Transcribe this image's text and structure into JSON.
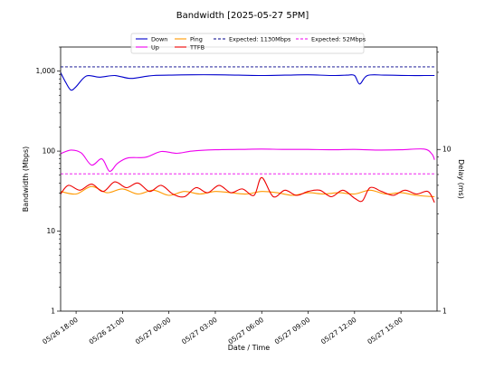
{
  "chart_data": {
    "type": "line",
    "title": "Bandwidth [2025-05-27 5PM]",
    "xlabel": "Date / Time",
    "ylabel": "Bandwidth (Mbps)",
    "y2label": "Delay (ms)",
    "yscale": "log",
    "y2scale": "log",
    "ylim": [
      1,
      2000
    ],
    "y2lim": [
      1,
      43
    ],
    "xlim": [
      "2025-05-26 17:00",
      "2025-05-27 17:20"
    ],
    "x_ticks": [
      "05/26 18:00",
      "05/26 21:00",
      "05/27 00:00",
      "05/27 03:00",
      "05/27 06:00",
      "05/27 09:00",
      "05/27 12:00",
      "05/27 15:00"
    ],
    "y_ticks": [
      "1",
      "10",
      "100",
      "1,000"
    ],
    "y2_ticks": [
      "1",
      "10"
    ],
    "grid": false,
    "legend_position": "top-center",
    "series": [
      {
        "name": "Down",
        "axis": "left",
        "color": "#0000cc",
        "style": "solid",
        "x": [
          "2025-05-26 17:00",
          "2025-05-26 17:20",
          "2025-05-26 17:40",
          "2025-05-26 18:00",
          "2025-05-26 18:40",
          "2025-05-26 19:30",
          "2025-05-26 20:30",
          "2025-05-26 21:30",
          "2025-05-26 22:30",
          "2025-05-26 23:00",
          "2025-05-27 00:00",
          "2025-05-27 01:30",
          "2025-05-27 03:00",
          "2025-05-27 04:30",
          "2025-05-27 06:00",
          "2025-05-27 07:30",
          "2025-05-27 09:00",
          "2025-05-27 10:30",
          "2025-05-27 11:30",
          "2025-05-27 12:00",
          "2025-05-27 12:20",
          "2025-05-27 12:50",
          "2025-05-27 14:00",
          "2025-05-27 15:30",
          "2025-05-27 16:30",
          "2025-05-27 17:10"
        ],
        "values": [
          960,
          720,
          580,
          640,
          870,
          840,
          880,
          810,
          860,
          880,
          890,
          900,
          900,
          890,
          880,
          890,
          900,
          880,
          890,
          880,
          690,
          880,
          890,
          880,
          880,
          880
        ]
      },
      {
        "name": "Up",
        "axis": "left",
        "color": "#ee00ee",
        "style": "solid",
        "x": [
          "2025-05-26 17:00",
          "2025-05-26 17:40",
          "2025-05-26 18:20",
          "2025-05-26 19:00",
          "2025-05-26 19:40",
          "2025-05-26 20:10",
          "2025-05-26 20:40",
          "2025-05-26 21:20",
          "2025-05-26 22:30",
          "2025-05-26 23:30",
          "2025-05-27 00:30",
          "2025-05-27 01:30",
          "2025-05-27 03:00",
          "2025-05-27 04:30",
          "2025-05-27 06:00",
          "2025-05-27 07:30",
          "2025-05-27 09:00",
          "2025-05-27 10:30",
          "2025-05-27 12:00",
          "2025-05-27 13:30",
          "2025-05-27 15:00",
          "2025-05-27 16:30",
          "2025-05-27 17:00",
          "2025-05-27 17:10"
        ],
        "values": [
          93,
          103,
          95,
          67,
          80,
          56,
          70,
          82,
          84,
          99,
          94,
          100,
          104,
          105,
          106,
          105,
          105,
          104,
          105,
          103,
          104,
          106,
          92,
          78
        ]
      },
      {
        "name": "Expected: 1130Mbps",
        "axis": "left",
        "color": "#00008b",
        "style": "dashed",
        "x": [
          "2025-05-26 17:00",
          "2025-05-27 17:10"
        ],
        "values": [
          1130,
          1130
        ]
      },
      {
        "name": "Expected: 52Mbps",
        "axis": "left",
        "color": "#ee00ee",
        "style": "dashed",
        "x": [
          "2025-05-26 17:00",
          "2025-05-27 17:10"
        ],
        "values": [
          52,
          52
        ]
      },
      {
        "name": "Ping",
        "axis": "right",
        "color": "#ff9900",
        "style": "solid",
        "x": [
          "2025-05-26 17:00",
          "2025-05-26 18:00",
          "2025-05-26 19:00",
          "2025-05-26 20:00",
          "2025-05-26 21:00",
          "2025-05-26 22:00",
          "2025-05-26 23:00",
          "2025-05-27 00:00",
          "2025-05-27 01:00",
          "2025-05-27 02:00",
          "2025-05-27 03:00",
          "2025-05-27 04:00",
          "2025-05-27 05:00",
          "2025-05-27 06:00",
          "2025-05-27 07:00",
          "2025-05-27 08:00",
          "2025-05-27 09:00",
          "2025-05-27 10:00",
          "2025-05-27 11:00",
          "2025-05-27 12:00",
          "2025-05-27 13:00",
          "2025-05-27 14:00",
          "2025-05-27 15:00",
          "2025-05-27 16:00",
          "2025-05-27 17:10"
        ],
        "values": [
          5.5,
          5.3,
          5.9,
          5.4,
          5.7,
          5.3,
          5.6,
          5.2,
          5.5,
          5.3,
          5.5,
          5.4,
          5.3,
          5.5,
          5.4,
          5.2,
          5.4,
          5.3,
          5.4,
          5.3,
          5.6,
          5.3,
          5.4,
          5.2,
          5.1
        ]
      },
      {
        "name": "TTFB",
        "axis": "right",
        "color": "#ee0000",
        "style": "solid",
        "x": [
          "2025-05-26 17:00",
          "2025-05-26 17:30",
          "2025-05-26 18:15",
          "2025-05-26 19:00",
          "2025-05-26 19:45",
          "2025-05-26 20:30",
          "2025-05-26 21:15",
          "2025-05-26 22:00",
          "2025-05-26 22:45",
          "2025-05-26 23:30",
          "2025-05-27 00:15",
          "2025-05-27 01:00",
          "2025-05-27 01:45",
          "2025-05-27 02:30",
          "2025-05-27 03:15",
          "2025-05-27 04:00",
          "2025-05-27 04:45",
          "2025-05-27 05:30",
          "2025-05-27 06:00",
          "2025-05-27 06:45",
          "2025-05-27 07:30",
          "2025-05-27 08:15",
          "2025-05-27 09:00",
          "2025-05-27 09:45",
          "2025-05-27 10:30",
          "2025-05-27 11:15",
          "2025-05-27 12:00",
          "2025-05-27 12:30",
          "2025-05-27 13:00",
          "2025-05-27 13:45",
          "2025-05-27 14:30",
          "2025-05-27 15:15",
          "2025-05-27 16:00",
          "2025-05-27 16:45",
          "2025-05-27 17:10"
        ],
        "values": [
          5.3,
          6.0,
          5.6,
          6.1,
          5.5,
          6.3,
          5.8,
          6.2,
          5.5,
          6.0,
          5.3,
          5.1,
          5.8,
          5.4,
          6.0,
          5.4,
          5.7,
          5.2,
          6.7,
          5.1,
          5.6,
          5.2,
          5.5,
          5.6,
          5.1,
          5.6,
          5.0,
          4.8,
          5.8,
          5.5,
          5.2,
          5.6,
          5.3,
          5.5,
          4.7
        ]
      }
    ]
  }
}
